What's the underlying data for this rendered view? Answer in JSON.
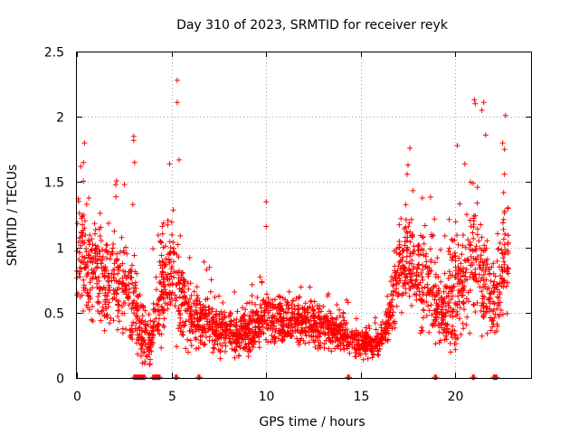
{
  "chart_data": {
    "type": "scatter",
    "title": "Day 310 of 2023, SRMTID for receiver reyk",
    "xlabel": "GPS time / hours",
    "ylabel": "SRMTID / TECUs",
    "xlim": [
      0,
      24
    ],
    "ylim": [
      0,
      2.5
    ],
    "grid": true,
    "marker": "+",
    "color": "#ff0000",
    "xticks": [
      {
        "value": 0,
        "label": "0"
      },
      {
        "value": 5,
        "label": "5"
      },
      {
        "value": 10,
        "label": "10"
      },
      {
        "value": 15,
        "label": "15"
      },
      {
        "value": 20,
        "label": "20"
      }
    ],
    "yticks": [
      {
        "value": 0,
        "label": "0"
      },
      {
        "value": 0.5,
        "label": "0.5"
      },
      {
        "value": 1,
        "label": "1"
      },
      {
        "value": 1.5,
        "label": "1.5"
      },
      {
        "value": 2,
        "label": "2"
      },
      {
        "value": 2.5,
        "label": "2.5"
      }
    ],
    "profile_note": "approximate envelope of the dense point cloud: [hour, typical SRMTID, spread]",
    "profile": [
      [
        0.0,
        0.85,
        0.35
      ],
      [
        0.5,
        0.9,
        0.4
      ],
      [
        1.0,
        0.85,
        0.35
      ],
      [
        1.5,
        0.7,
        0.3
      ],
      [
        2.0,
        0.75,
        0.35
      ],
      [
        2.5,
        0.65,
        0.3
      ],
      [
        3.0,
        0.6,
        0.3
      ],
      [
        3.5,
        0.3,
        0.2
      ],
      [
        4.0,
        0.3,
        0.2
      ],
      [
        4.5,
        0.7,
        0.35
      ],
      [
        5.0,
        0.8,
        0.35
      ],
      [
        5.5,
        0.6,
        0.3
      ],
      [
        6.0,
        0.45,
        0.2
      ],
      [
        7.0,
        0.4,
        0.18
      ],
      [
        8.0,
        0.35,
        0.15
      ],
      [
        9.0,
        0.35,
        0.15
      ],
      [
        10.0,
        0.45,
        0.18
      ],
      [
        11.0,
        0.42,
        0.16
      ],
      [
        12.0,
        0.42,
        0.16
      ],
      [
        13.0,
        0.4,
        0.15
      ],
      [
        14.0,
        0.32,
        0.12
      ],
      [
        15.0,
        0.25,
        0.1
      ],
      [
        16.0,
        0.28,
        0.1
      ],
      [
        16.5,
        0.45,
        0.15
      ],
      [
        17.0,
        0.75,
        0.3
      ],
      [
        17.5,
        0.95,
        0.35
      ],
      [
        18.0,
        0.75,
        0.35
      ],
      [
        18.5,
        0.8,
        0.35
      ],
      [
        19.0,
        0.55,
        0.3
      ],
      [
        19.5,
        0.5,
        0.3
      ],
      [
        20.0,
        0.7,
        0.4
      ],
      [
        20.5,
        0.75,
        0.4
      ],
      [
        21.0,
        1.0,
        0.45
      ],
      [
        21.5,
        0.7,
        0.35
      ],
      [
        22.0,
        0.55,
        0.3
      ],
      [
        22.5,
        0.85,
        0.35
      ],
      [
        22.8,
        0.9,
        0.35
      ]
    ],
    "outliers": [
      [
        5.3,
        2.28
      ],
      [
        5.3,
        2.11
      ],
      [
        5.4,
        1.67
      ],
      [
        4.9,
        1.64
      ],
      [
        0.4,
        1.8
      ],
      [
        0.2,
        1.62
      ],
      [
        0.35,
        1.65
      ],
      [
        3.0,
        1.85
      ],
      [
        3.0,
        1.82
      ],
      [
        3.05,
        1.65
      ],
      [
        2.1,
        1.51
      ],
      [
        2.05,
        1.48
      ],
      [
        10.0,
        1.35
      ],
      [
        10.0,
        1.16
      ],
      [
        17.6,
        1.76
      ],
      [
        20.1,
        1.78
      ],
      [
        21.0,
        2.13
      ],
      [
        21.05,
        2.1
      ],
      [
        21.5,
        2.11
      ],
      [
        21.4,
        2.05
      ],
      [
        21.6,
        1.86
      ],
      [
        22.5,
        1.8
      ],
      [
        22.6,
        1.75
      ],
      [
        22.65,
        2.01
      ],
      [
        22.6,
        1.56
      ],
      [
        22.55,
        1.42
      ],
      [
        20.5,
        1.64
      ],
      [
        20.8,
        1.5
      ],
      [
        17.5,
        1.63
      ],
      [
        17.45,
        1.56
      ]
    ],
    "zero_run_segments": [
      [
        3.0,
        3.6
      ],
      [
        4.0,
        4.4
      ],
      [
        5.2,
        5.3
      ],
      [
        6.4,
        6.5
      ],
      [
        14.3,
        14.4
      ],
      [
        18.9,
        19.0
      ],
      [
        20.9,
        21.0
      ],
      [
        22.0,
        22.2
      ]
    ]
  }
}
